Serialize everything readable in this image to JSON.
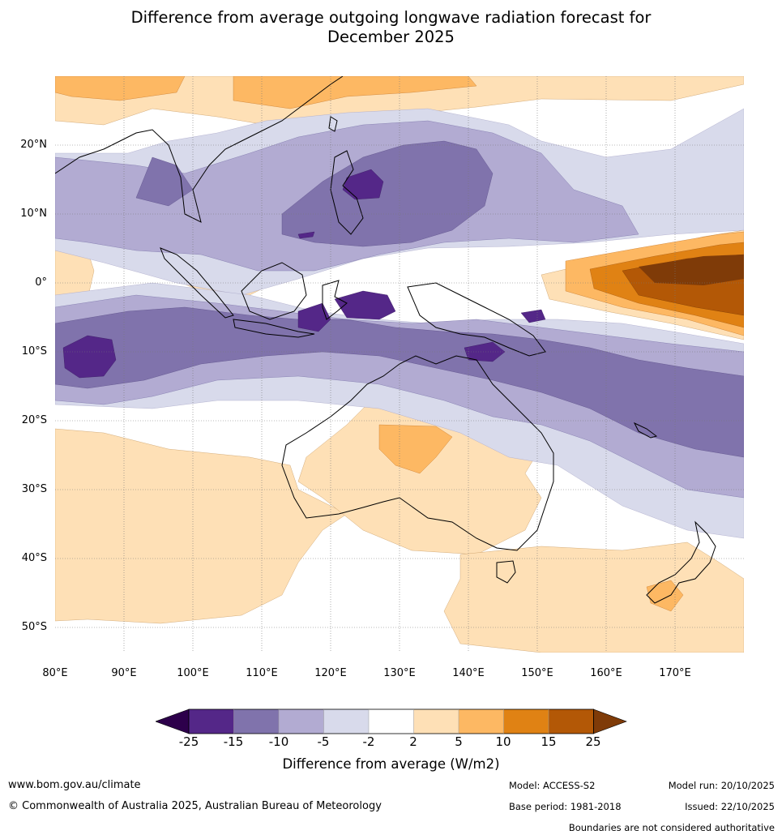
{
  "title": {
    "line1": "Difference from average outgoing longwave radiation forecast for",
    "line2": "December 2025"
  },
  "map": {
    "lat_labels": [
      "20°N",
      "10°N",
      "0°",
      "10°S",
      "20°S",
      "30°S",
      "40°S",
      "50°S"
    ],
    "lon_labels": [
      "80°E",
      "90°E",
      "100°E",
      "110°E",
      "120°E",
      "130°E",
      "140°E",
      "150°E",
      "160°E",
      "170°E"
    ]
  },
  "colorbar": {
    "ticks": [
      "-25",
      "-15",
      "-10",
      "-5",
      "-2",
      "2",
      "5",
      "10",
      "15",
      "25"
    ],
    "colors": [
      "#2d004b",
      "#542788",
      "#8073ac",
      "#b2abd2",
      "#d8daeb",
      "#ffffff",
      "#fee0b6",
      "#fdb863",
      "#e08214",
      "#b35806",
      "#7f3b08"
    ],
    "label": "Difference from average (W/m2)"
  },
  "footer": {
    "url": "www.bom.gov.au/climate",
    "copyright": "© Commonwealth of Australia 2025, Australian Bureau of Meteorology",
    "model": "Model: ACCESS-S2",
    "base_period": "Base period: 1981-2018",
    "model_run": "Model run: 20/10/2025",
    "issued": "Issued: 22/10/2025",
    "boundaries_note": "Boundaries are not considered authoritative"
  }
}
